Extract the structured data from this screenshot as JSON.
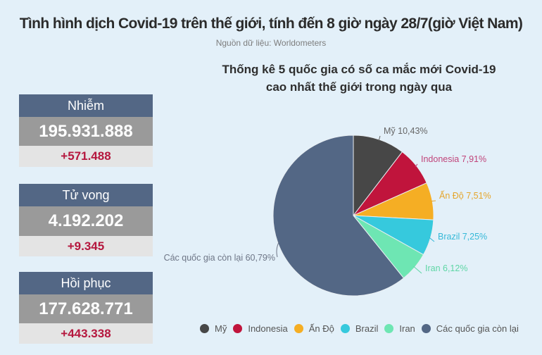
{
  "header": {
    "title": "Tình hình dịch Covid-19 trên thế giới, tính đến 8 giờ ngày 28/7(giờ Việt Nam)",
    "source": "Nguồn dữ liệu: Worldometers"
  },
  "stats": {
    "cases": {
      "label": "Nhiễm",
      "total": "195.931.888",
      "delta": "+571.488"
    },
    "deaths": {
      "label": "Tử vong",
      "total": "4.192.202",
      "delta": "+9.345"
    },
    "recovered": {
      "label": "Hồi phục",
      "total": "177.628.771",
      "delta": "+443.338"
    }
  },
  "chart": {
    "title_line1": "Thống kê 5 quốc gia có số ca mắc  mới Covid-19",
    "title_line2": "cao nhất thế giới trong ngày qua"
  },
  "chart_data": {
    "type": "pie",
    "title": "Thống kê 5 quốc gia có số ca mắc mới Covid-19 cao nhất thế giới trong ngày qua",
    "categories": [
      "Mỹ",
      "Indonesia",
      "Ấn Độ",
      "Brazil",
      "Iran",
      "Các quốc gia còn lại"
    ],
    "values": [
      10.43,
      7.91,
      7.51,
      7.25,
      6.12,
      60.79
    ],
    "labels": [
      "Mỹ 10,43%",
      "Indonesia 7,91%",
      "Ấn Độ 7,51%",
      "Brazil 7,25%",
      "Iran 6,12%",
      "Các quốc gia còn lại 60,79%"
    ],
    "colors": [
      "#474747",
      "#c0143c",
      "#f5ae24",
      "#36c9dd",
      "#6ee6b3",
      "#536785"
    ],
    "legend_position": "bottom",
    "start_angle": "12 o'clock, clockwise"
  },
  "legend": {
    "items": [
      {
        "label": "Mỹ",
        "color": "#474747"
      },
      {
        "label": "Indonesia",
        "color": "#c0143c"
      },
      {
        "label": "Ấn Độ",
        "color": "#f5ae24"
      },
      {
        "label": "Brazil",
        "color": "#36c9dd"
      },
      {
        "label": "Iran",
        "color": "#6ee6b3"
      },
      {
        "label": "Các quốc gia còn lại",
        "color": "#536785"
      }
    ]
  }
}
